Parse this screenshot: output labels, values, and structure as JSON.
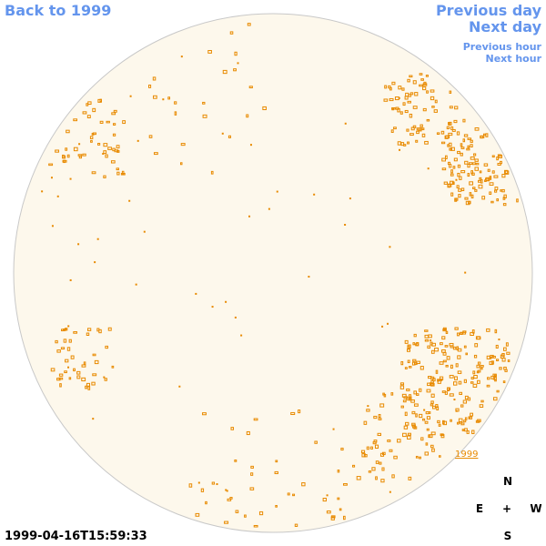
{
  "nav": {
    "back": "Back to 1999",
    "previous_day": "Previous day",
    "next_day": "Next day",
    "previous_hour": "Previous hour",
    "next_hour": "Next hour"
  },
  "timestamp": "1999-04-16T15:59:33",
  "year_label": "1999",
  "compass": {
    "north": "N",
    "east": "E",
    "center": "+",
    "west": "W",
    "south": "S"
  }
}
